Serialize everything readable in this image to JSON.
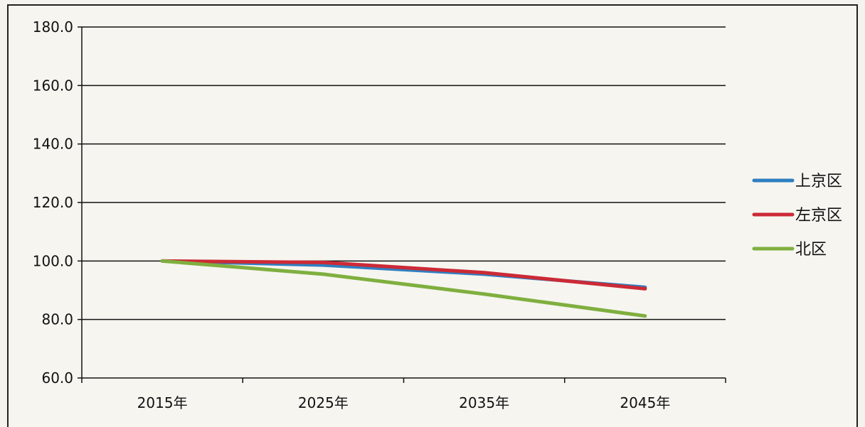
{
  "chart_data": {
    "type": "line",
    "categories": [
      "2015年",
      "2025年",
      "2035年",
      "2045年"
    ],
    "ylim": [
      60,
      180
    ],
    "yticks": [
      "60.0",
      "80.0",
      "100.0",
      "120.0",
      "140.0",
      "160.0",
      "180.0"
    ],
    "grid": true,
    "legend_position": "right",
    "series": [
      {
        "name": "上京区",
        "color": "#2f7fc1",
        "values": [
          100,
          98.6,
          95.5,
          91.0
        ]
      },
      {
        "name": "左京区",
        "color": "#cc2a36",
        "values": [
          100,
          99.5,
          96.0,
          90.5
        ]
      },
      {
        "name": "北区",
        "color": "#7faf3f",
        "values": [
          100,
          95.5,
          88.7,
          81.2
        ]
      }
    ]
  }
}
